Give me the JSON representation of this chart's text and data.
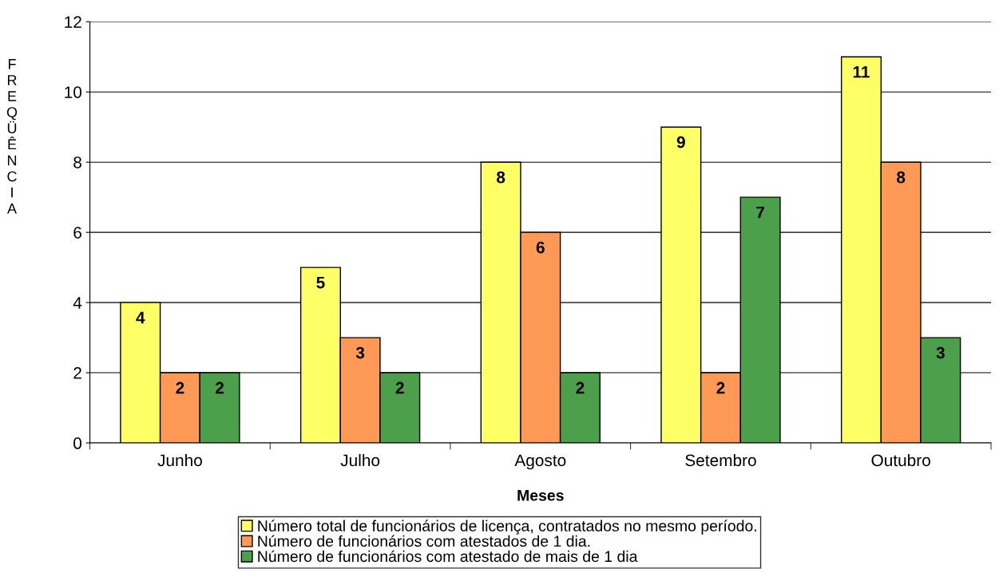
{
  "chart_data": {
    "type": "bar",
    "xlabel": "Meses",
    "ylabel": "FREQÜÊNCIA",
    "categories": [
      "Junho",
      "Julho",
      "Agosto",
      "Setembro",
      "Outubro"
    ],
    "series": [
      {
        "name": "Número total de funcionários de licença, contratados no mesmo período.",
        "color": "#ffff66",
        "values": [
          4,
          5,
          8,
          9,
          11
        ]
      },
      {
        "name": "Número de funcionários com atestados de 1 dia.",
        "color": "#ff9955",
        "values": [
          2,
          3,
          6,
          2,
          8
        ]
      },
      {
        "name": "Número de funcionários com atestado de mais de 1 dia",
        "color": "#4ca04c",
        "values": [
          2,
          2,
          2,
          7,
          3
        ]
      }
    ],
    "ylim": [
      0,
      12
    ],
    "yticks": [
      0,
      2,
      4,
      6,
      8,
      10,
      12
    ],
    "grid": "y",
    "legend": "bottom",
    "data_labels": true
  }
}
